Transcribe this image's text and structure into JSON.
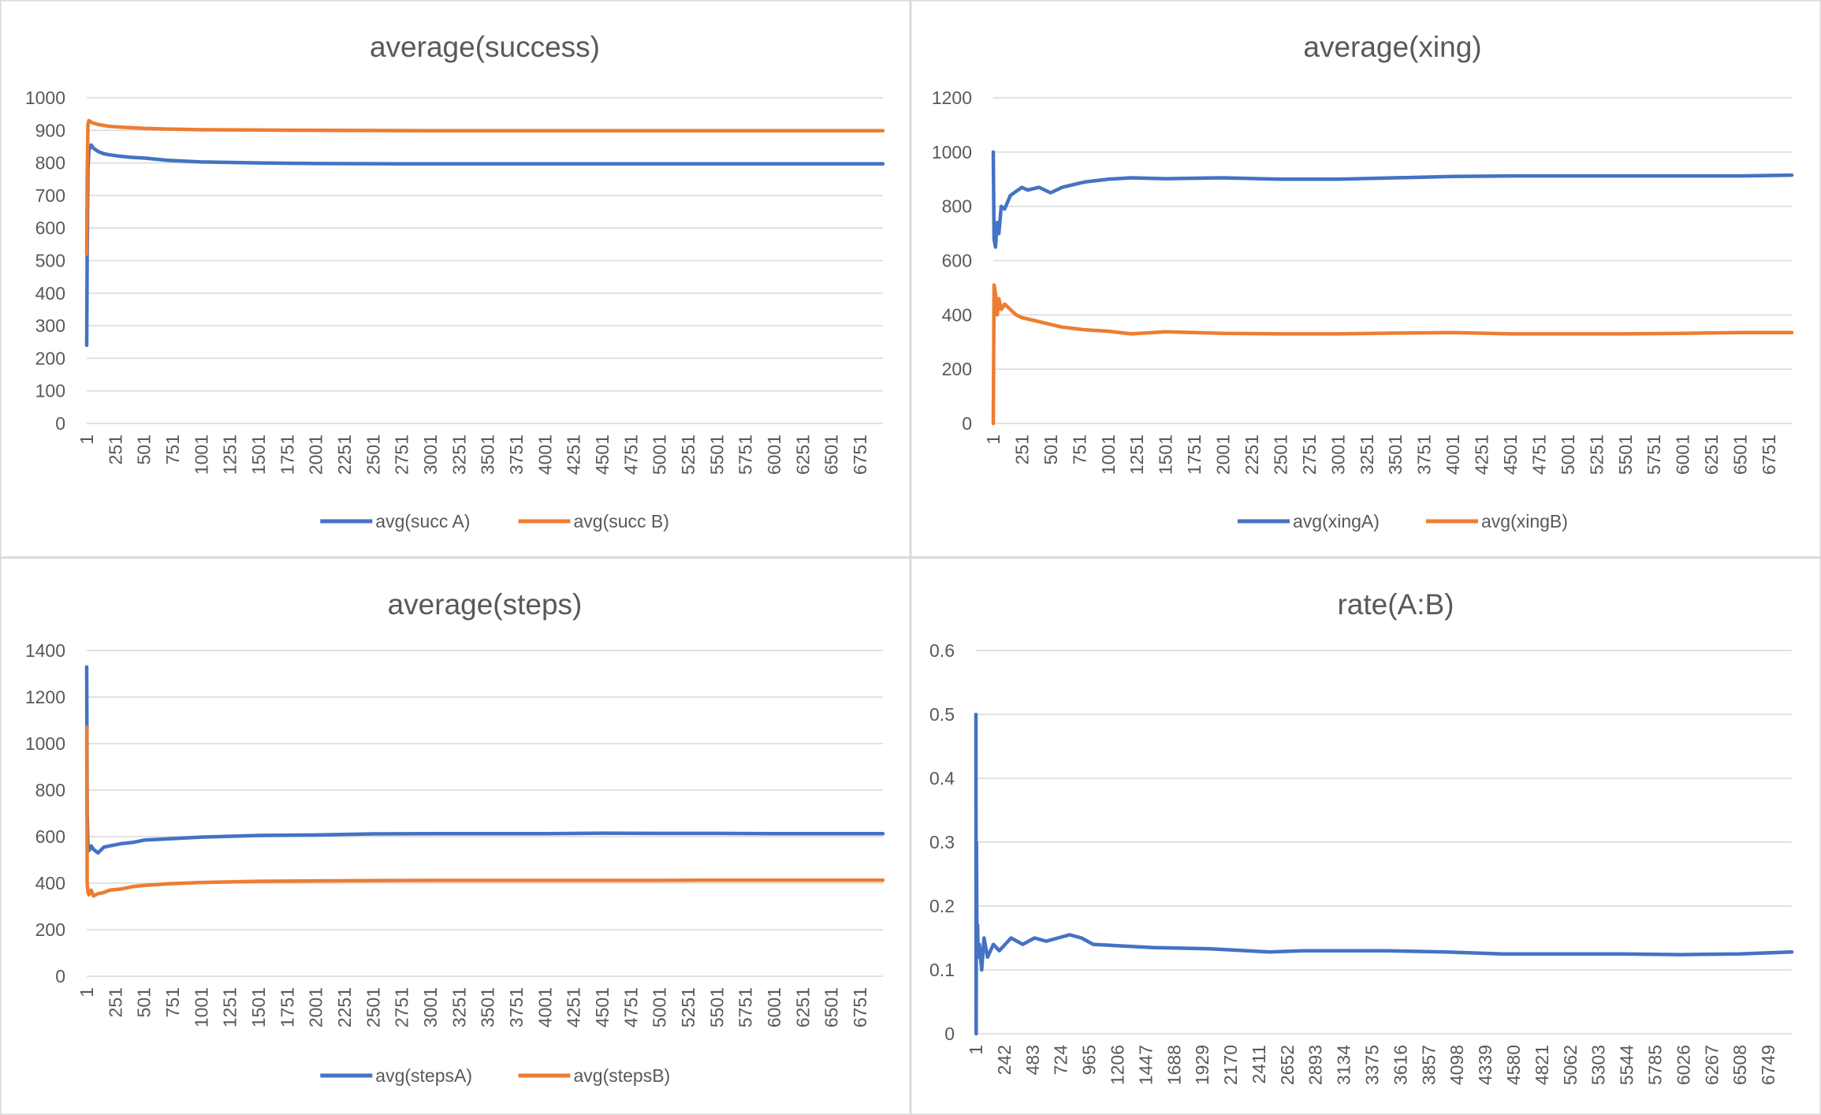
{
  "chart_data": [
    {
      "type": "line",
      "title": "average(success)",
      "xlabel": "",
      "ylabel": "",
      "ylim": [
        0,
        1000
      ],
      "yticks": [
        "0",
        "100",
        "200",
        "300",
        "400",
        "500",
        "600",
        "700",
        "800",
        "900",
        "1000"
      ],
      "xticks": [
        "1",
        "251",
        "501",
        "751",
        "1001",
        "1251",
        "1501",
        "1751",
        "2001",
        "2251",
        "2501",
        "2751",
        "3001",
        "3251",
        "3501",
        "3751",
        "4001",
        "4251",
        "4501",
        "4751",
        "5001",
        "5251",
        "5501",
        "5751",
        "6001",
        "6251",
        "6501",
        "6751"
      ],
      "xrange": [
        1,
        6950
      ],
      "grid": true,
      "legend": "bottom",
      "series": [
        {
          "name": "avg(succ A)",
          "color": "#4472c4",
          "x": [
            1,
            5,
            12,
            20,
            40,
            60,
            100,
            150,
            200,
            300,
            400,
            500,
            700,
            1000,
            1500,
            2000,
            3000,
            4000,
            5000,
            6000,
            6950
          ],
          "values": [
            240,
            520,
            780,
            840,
            855,
            845,
            835,
            828,
            825,
            820,
            817,
            815,
            808,
            803,
            800,
            798,
            797,
            797,
            797,
            797,
            797
          ]
        },
        {
          "name": "avg(succ B)",
          "color": "#ed7d31",
          "x": [
            1,
            5,
            12,
            20,
            40,
            60,
            100,
            150,
            200,
            300,
            400,
            500,
            700,
            1000,
            1500,
            2000,
            3000,
            4000,
            5000,
            6000,
            6950
          ],
          "values": [
            520,
            760,
            920,
            930,
            925,
            922,
            918,
            915,
            912,
            910,
            908,
            906,
            904,
            902,
            901,
            900,
            899,
            899,
            899,
            899,
            899
          ]
        }
      ]
    },
    {
      "type": "line",
      "title": "average(xing)",
      "xlabel": "",
      "ylabel": "",
      "ylim": [
        0,
        1200
      ],
      "yticks": [
        "0",
        "200",
        "400",
        "600",
        "800",
        "1000",
        "1200"
      ],
      "xticks": [
        "1",
        "251",
        "501",
        "751",
        "1001",
        "1251",
        "1501",
        "1751",
        "2001",
        "2251",
        "2501",
        "2751",
        "3001",
        "3251",
        "3501",
        "3751",
        "4001",
        "4251",
        "4501",
        "4751",
        "5001",
        "5251",
        "5501",
        "5751",
        "6001",
        "6251",
        "6501",
        "6751"
      ],
      "xrange": [
        1,
        6950
      ],
      "grid": true,
      "legend": "bottom",
      "series": [
        {
          "name": "avg(xingA)",
          "color": "#4472c4",
          "x": [
            1,
            8,
            20,
            35,
            50,
            70,
            100,
            150,
            200,
            250,
            300,
            400,
            500,
            600,
            700,
            800,
            1000,
            1200,
            1500,
            2000,
            2500,
            3000,
            3500,
            4000,
            4500,
            5000,
            5500,
            6000,
            6500,
            6950
          ],
          "values": [
            1000,
            680,
            650,
            740,
            700,
            800,
            790,
            840,
            855,
            870,
            860,
            870,
            850,
            870,
            880,
            890,
            900,
            905,
            902,
            905,
            900,
            900,
            905,
            910,
            912,
            912,
            912,
            912,
            912,
            915
          ]
        },
        {
          "name": "avg(xingB)",
          "color": "#ed7d31",
          "x": [
            1,
            8,
            20,
            35,
            50,
            70,
            100,
            150,
            200,
            250,
            300,
            400,
            500,
            600,
            700,
            800,
            1000,
            1200,
            1500,
            2000,
            2500,
            3000,
            3500,
            4000,
            4500,
            5000,
            5500,
            6000,
            6500,
            6950
          ],
          "values": [
            0,
            510,
            480,
            400,
            460,
            420,
            440,
            420,
            400,
            390,
            385,
            375,
            365,
            355,
            350,
            345,
            340,
            330,
            338,
            332,
            330,
            330,
            333,
            335,
            330,
            330,
            330,
            332,
            335,
            335
          ]
        }
      ]
    },
    {
      "type": "line",
      "title": "average(steps)",
      "xlabel": "",
      "ylabel": "",
      "ylim": [
        0,
        1400
      ],
      "yticks": [
        "0",
        "200",
        "400",
        "600",
        "800",
        "1000",
        "1200",
        "1400"
      ],
      "xticks": [
        "1",
        "251",
        "501",
        "751",
        "1001",
        "1251",
        "1501",
        "1751",
        "2001",
        "2251",
        "2501",
        "2751",
        "3001",
        "3251",
        "3501",
        "3751",
        "4001",
        "4251",
        "4501",
        "4751",
        "5001",
        "5251",
        "5501",
        "5751",
        "6001",
        "6251",
        "6501",
        "6751"
      ],
      "xrange": [
        1,
        6950
      ],
      "grid": true,
      "legend": "bottom",
      "series": [
        {
          "name": "avg(stepsA)",
          "color": "#4472c4",
          "x": [
            1,
            5,
            12,
            20,
            40,
            60,
            100,
            150,
            200,
            300,
            400,
            500,
            700,
            1000,
            1500,
            2000,
            2500,
            3000,
            3500,
            4000,
            4500,
            5000,
            5500,
            6000,
            6500,
            6950
          ],
          "values": [
            1330,
            700,
            560,
            540,
            560,
            545,
            530,
            555,
            560,
            570,
            575,
            585,
            590,
            598,
            605,
            607,
            612,
            613,
            613,
            613,
            615,
            614,
            614,
            613,
            613,
            613
          ]
        },
        {
          "name": "avg(stepsB)",
          "color": "#ed7d31",
          "x": [
            1,
            5,
            12,
            20,
            40,
            60,
            100,
            150,
            200,
            300,
            400,
            500,
            700,
            1000,
            1500,
            2000,
            2500,
            3000,
            3500,
            4000,
            4500,
            5000,
            5500,
            6000,
            6500,
            6950
          ],
          "values": [
            1070,
            400,
            360,
            350,
            370,
            345,
            355,
            360,
            370,
            375,
            385,
            390,
            397,
            403,
            408,
            410,
            411,
            412,
            412,
            412,
            412,
            412,
            413,
            413,
            413,
            413
          ]
        }
      ]
    },
    {
      "type": "line",
      "title": "rate(A:B)",
      "xlabel": "",
      "ylabel": "",
      "ylim": [
        0,
        0.6
      ],
      "yticks": [
        "0",
        "0.1",
        "0.2",
        "0.3",
        "0.4",
        "0.5",
        "0.6"
      ],
      "xticks": [
        "1",
        "242",
        "483",
        "724",
        "965",
        "1206",
        "1447",
        "1688",
        "1929",
        "2170",
        "2411",
        "2652",
        "2893",
        "3134",
        "3375",
        "3616",
        "3857",
        "4098",
        "4339",
        "4580",
        "4821",
        "5062",
        "5303",
        "5544",
        "5785",
        "6026",
        "6267",
        "6508",
        "6749"
      ],
      "xrange": [
        1,
        6950
      ],
      "grid": true,
      "legend": "none",
      "series": [
        {
          "color": "#4472c4",
          "x": [
            1,
            3,
            6,
            10,
            15,
            20,
            30,
            50,
            70,
            100,
            150,
            200,
            250,
            300,
            400,
            500,
            600,
            700,
            800,
            900,
            1000,
            1200,
            1500,
            2000,
            2500,
            2800,
            3000,
            3500,
            4000,
            4500,
            5000,
            5500,
            6000,
            6500,
            6950
          ],
          "values": [
            0.5,
            0.0,
            0.3,
            0.15,
            0.17,
            0.12,
            0.14,
            0.1,
            0.15,
            0.12,
            0.14,
            0.13,
            0.14,
            0.15,
            0.14,
            0.15,
            0.145,
            0.15,
            0.155,
            0.15,
            0.14,
            0.138,
            0.135,
            0.133,
            0.128,
            0.13,
            0.13,
            0.13,
            0.128,
            0.125,
            0.125,
            0.125,
            0.124,
            0.125,
            0.128
          ]
        }
      ]
    }
  ]
}
